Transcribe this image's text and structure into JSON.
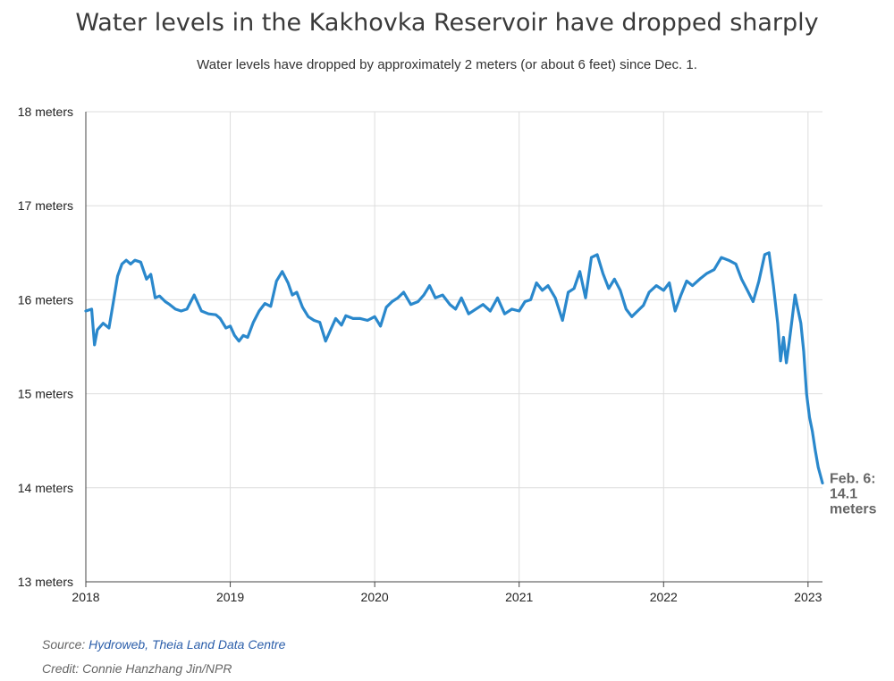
{
  "chart_data": {
    "type": "line",
    "title": "Water levels in the Kakhovka Reservoir have dropped sharply",
    "subtitle": "Water levels have dropped by approximately 2 meters (or about 6 feet) since Dec. 1.",
    "xlabel": "",
    "ylabel": "",
    "x_ticks": [
      "2018",
      "2019",
      "2020",
      "2021",
      "2022",
      "2023"
    ],
    "y_ticks": [
      "13 meters",
      "14 meters",
      "15 meters",
      "16 meters",
      "17 meters",
      "18 meters"
    ],
    "xlim": [
      2018.0,
      2023.1
    ],
    "ylim": [
      13,
      18
    ],
    "grid": true,
    "line_color": "#2a88cc",
    "end_annotation": [
      "Feb. 6:",
      "14.1",
      "meters"
    ],
    "series": [
      {
        "x": [
          2018.0,
          2018.04,
          2018.06,
          2018.08,
          2018.12,
          2018.16,
          2018.19,
          2018.22,
          2018.25,
          2018.28,
          2018.31,
          2018.34,
          2018.38,
          2018.42,
          2018.45,
          2018.48,
          2018.51,
          2018.55,
          2018.58,
          2018.62,
          2018.66,
          2018.7,
          2018.75,
          2018.8,
          2018.85,
          2018.9,
          2018.93,
          2018.97,
          2019.0,
          2019.03,
          2019.06,
          2019.09,
          2019.12,
          2019.16,
          2019.2,
          2019.24,
          2019.28,
          2019.32,
          2019.36,
          2019.4,
          2019.43,
          2019.46,
          2019.5,
          2019.54,
          2019.58,
          2019.62,
          2019.66,
          2019.7,
          2019.73,
          2019.77,
          2019.8,
          2019.85,
          2019.9,
          2019.95,
          2020.0,
          2020.04,
          2020.08,
          2020.12,
          2020.16,
          2020.2,
          2020.25,
          2020.3,
          2020.34,
          2020.38,
          2020.42,
          2020.47,
          2020.52,
          2020.56,
          2020.6,
          2020.65,
          2020.7,
          2020.75,
          2020.8,
          2020.85,
          2020.9,
          2020.95,
          2021.0,
          2021.04,
          2021.08,
          2021.12,
          2021.16,
          2021.2,
          2021.25,
          2021.3,
          2021.34,
          2021.38,
          2021.42,
          2021.46,
          2021.5,
          2021.54,
          2021.58,
          2021.62,
          2021.66,
          2021.7,
          2021.74,
          2021.78,
          2021.82,
          2021.86,
          2021.9,
          2021.95,
          2022.0,
          2022.04,
          2022.08,
          2022.12,
          2022.16,
          2022.2,
          2022.25,
          2022.3,
          2022.35,
          2022.4,
          2022.45,
          2022.5,
          2022.54,
          2022.58,
          2022.62,
          2022.66,
          2022.7,
          2022.73,
          2022.76,
          2022.79,
          2022.81,
          2022.83,
          2022.85,
          2022.87,
          2022.89,
          2022.91,
          2022.93,
          2022.95,
          2022.97,
          2022.99,
          2023.01,
          2023.03,
          2023.05,
          2023.07,
          2023.1
        ],
        "y": [
          15.88,
          15.9,
          15.52,
          15.68,
          15.75,
          15.7,
          15.97,
          16.25,
          16.38,
          16.42,
          16.38,
          16.42,
          16.4,
          16.22,
          16.27,
          16.02,
          16.04,
          15.98,
          15.95,
          15.9,
          15.88,
          15.9,
          16.05,
          15.88,
          15.85,
          15.84,
          15.8,
          15.7,
          15.72,
          15.62,
          15.56,
          15.62,
          15.6,
          15.76,
          15.88,
          15.96,
          15.93,
          16.2,
          16.3,
          16.18,
          16.05,
          16.08,
          15.92,
          15.82,
          15.78,
          15.76,
          15.56,
          15.7,
          15.8,
          15.73,
          15.83,
          15.8,
          15.8,
          15.78,
          15.82,
          15.72,
          15.92,
          15.98,
          16.02,
          16.08,
          15.95,
          15.98,
          16.05,
          16.15,
          16.02,
          16.05,
          15.95,
          15.9,
          16.02,
          15.85,
          15.9,
          15.95,
          15.88,
          16.02,
          15.85,
          15.9,
          15.88,
          15.98,
          16.0,
          16.18,
          16.1,
          16.15,
          16.02,
          15.78,
          16.08,
          16.12,
          16.3,
          16.02,
          16.45,
          16.48,
          16.28,
          16.12,
          16.22,
          16.1,
          15.9,
          15.82,
          15.88,
          15.94,
          16.08,
          16.15,
          16.1,
          16.18,
          15.88,
          16.05,
          16.2,
          16.15,
          16.22,
          16.28,
          16.32,
          16.45,
          16.42,
          16.38,
          16.22,
          16.1,
          15.98,
          16.2,
          16.48,
          16.5,
          16.15,
          15.75,
          15.35,
          15.6,
          15.33,
          15.55,
          15.8,
          16.05,
          15.9,
          15.75,
          15.45,
          15.0,
          14.75,
          14.6,
          14.4,
          14.22,
          14.05
        ]
      }
    ]
  },
  "footer": {
    "source_prefix": "Source: ",
    "source_link": "Hydroweb, Theia Land Data Centre",
    "credit": "Credit: Connie Hanzhang Jin/NPR"
  }
}
